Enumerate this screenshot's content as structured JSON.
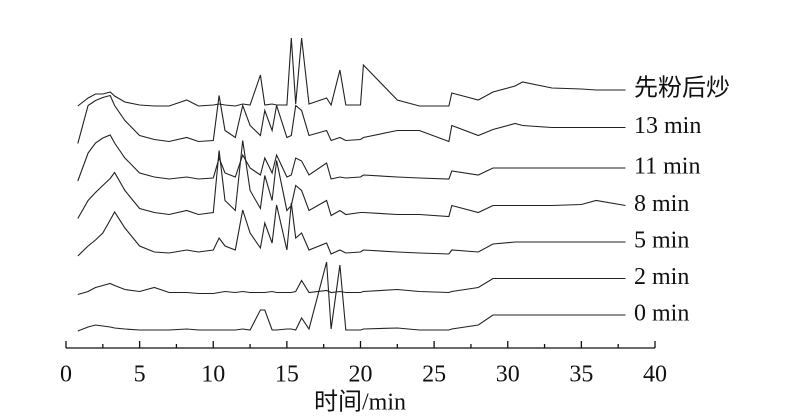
{
  "chart_data": {
    "type": "line",
    "x_label": "时间/min",
    "xlim": [
      0,
      40
    ],
    "xticks": [
      0,
      5,
      10,
      15,
      20,
      25,
      30,
      35,
      40
    ],
    "x": [
      0.8,
      1.5,
      2,
      2.5,
      3,
      3.3,
      4,
      5,
      6,
      7,
      8.2,
      9,
      10,
      10.4,
      10.8,
      11.5,
      12,
      12.5,
      13.2,
      13.5,
      14,
      14.3,
      15,
      15.3,
      15.6,
      16,
      16.5,
      17.7,
      18,
      18.6,
      19,
      20,
      20.2,
      22.5,
      24,
      26,
      26.2,
      28,
      29,
      30.5,
      31,
      33,
      35,
      36,
      38
    ],
    "series": [
      {
        "name": "先粉后炒",
        "color": "#222222",
        "values": [
          2,
          10,
          14,
          14,
          16,
          12,
          6,
          3,
          2,
          2,
          8,
          2,
          3,
          4,
          3,
          2,
          4,
          3,
          33,
          3,
          4,
          3,
          3,
          70,
          4,
          70,
          4,
          10,
          3,
          38,
          3,
          3,
          43,
          8,
          2,
          2,
          15,
          8,
          16,
          22,
          26,
          20,
          19,
          18,
          18
        ]
      },
      {
        "name": "13 min",
        "color": "#222222",
        "values": [
          2,
          40,
          45,
          48,
          50,
          40,
          25,
          10,
          6,
          4,
          8,
          4,
          5,
          50,
          15,
          8,
          40,
          20,
          10,
          35,
          15,
          40,
          8,
          10,
          40,
          35,
          10,
          15,
          5,
          8,
          5,
          6,
          8,
          15,
          15,
          4,
          20,
          10,
          16,
          22,
          20,
          18,
          18,
          18,
          18
        ]
      },
      {
        "name": "11 min",
        "color": "#222222",
        "values": [
          2,
          30,
          40,
          45,
          48,
          40,
          25,
          10,
          6,
          4,
          6,
          4,
          5,
          25,
          10,
          6,
          28,
          15,
          8,
          25,
          10,
          28,
          6,
          8,
          25,
          22,
          8,
          20,
          4,
          6,
          5,
          6,
          8,
          6,
          5,
          4,
          12,
          8,
          15,
          15,
          15,
          15,
          15,
          15,
          15
        ]
      },
      {
        "name": "8 min",
        "color": "#222222",
        "values": [
          2,
          20,
          28,
          35,
          42,
          48,
          30,
          12,
          8,
          6,
          10,
          6,
          8,
          70,
          20,
          10,
          80,
          30,
          12,
          45,
          20,
          60,
          10,
          15,
          35,
          30,
          10,
          20,
          5,
          10,
          6,
          8,
          8,
          6,
          6,
          4,
          15,
          8,
          15,
          15,
          15,
          15,
          16,
          20,
          15
        ]
      },
      {
        "name": "5 min",
        "color": "#222222",
        "values": [
          2,
          12,
          18,
          25,
          38,
          46,
          30,
          12,
          6,
          5,
          8,
          6,
          8,
          20,
          12,
          8,
          48,
          25,
          10,
          35,
          15,
          53,
          8,
          55,
          20,
          25,
          8,
          15,
          4,
          8,
          5,
          6,
          8,
          6,
          5,
          4,
          8,
          6,
          14,
          16,
          16,
          16,
          16,
          16,
          16
        ]
      },
      {
        "name": "2 min",
        "color": "#222222",
        "values": [
          1,
          4,
          8,
          10,
          12,
          10,
          6,
          4,
          8,
          3,
          3,
          2,
          2,
          3,
          4,
          3,
          4,
          3,
          3,
          3,
          4,
          3,
          3,
          3,
          4,
          15,
          3,
          5,
          3,
          4,
          3,
          3,
          4,
          6,
          4,
          3,
          4,
          8,
          17,
          17,
          17,
          17,
          17,
          17,
          17
        ]
      },
      {
        "name": "0 min",
        "color": "#222222",
        "values": [
          2,
          6,
          8,
          7,
          6,
          5,
          4,
          3,
          3,
          3,
          4,
          3,
          3,
          3,
          3,
          3,
          4,
          3,
          23,
          23,
          3,
          3,
          4,
          4,
          3,
          15,
          4,
          71,
          4,
          68,
          3,
          3,
          4,
          5,
          3,
          3,
          4,
          8,
          18,
          18,
          18,
          18,
          18,
          18,
          18
        ]
      }
    ]
  }
}
